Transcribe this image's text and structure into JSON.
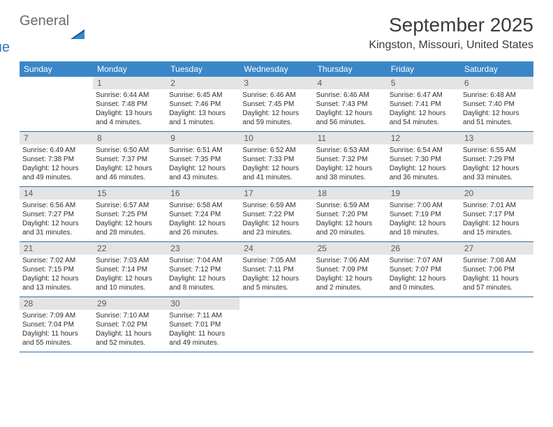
{
  "brand": {
    "part1": "General",
    "part2": "Blue"
  },
  "colors": {
    "header_bg": "#3a87c8",
    "header_text": "#ffffff",
    "daynum_bg": "#e4e4e4",
    "daynum_text": "#5a5a5a",
    "body_text": "#2e2e2e",
    "rule": "#2f6ea3",
    "logo_gray": "#6b6b6b",
    "logo_blue": "#2f77b8"
  },
  "title": "September 2025",
  "location": "Kingston, Missouri, United States",
  "daysOfWeek": [
    "Sunday",
    "Monday",
    "Tuesday",
    "Wednesday",
    "Thursday",
    "Friday",
    "Saturday"
  ],
  "weeks": [
    [
      null,
      {
        "num": "1",
        "sunrise": "Sunrise: 6:44 AM",
        "sunset": "Sunset: 7:48 PM",
        "daylight": "Daylight: 13 hours and 4 minutes."
      },
      {
        "num": "2",
        "sunrise": "Sunrise: 6:45 AM",
        "sunset": "Sunset: 7:46 PM",
        "daylight": "Daylight: 13 hours and 1 minutes."
      },
      {
        "num": "3",
        "sunrise": "Sunrise: 6:46 AM",
        "sunset": "Sunset: 7:45 PM",
        "daylight": "Daylight: 12 hours and 59 minutes."
      },
      {
        "num": "4",
        "sunrise": "Sunrise: 6:46 AM",
        "sunset": "Sunset: 7:43 PM",
        "daylight": "Daylight: 12 hours and 56 minutes."
      },
      {
        "num": "5",
        "sunrise": "Sunrise: 6:47 AM",
        "sunset": "Sunset: 7:41 PM",
        "daylight": "Daylight: 12 hours and 54 minutes."
      },
      {
        "num": "6",
        "sunrise": "Sunrise: 6:48 AM",
        "sunset": "Sunset: 7:40 PM",
        "daylight": "Daylight: 12 hours and 51 minutes."
      }
    ],
    [
      {
        "num": "7",
        "sunrise": "Sunrise: 6:49 AM",
        "sunset": "Sunset: 7:38 PM",
        "daylight": "Daylight: 12 hours and 49 minutes."
      },
      {
        "num": "8",
        "sunrise": "Sunrise: 6:50 AM",
        "sunset": "Sunset: 7:37 PM",
        "daylight": "Daylight: 12 hours and 46 minutes."
      },
      {
        "num": "9",
        "sunrise": "Sunrise: 6:51 AM",
        "sunset": "Sunset: 7:35 PM",
        "daylight": "Daylight: 12 hours and 43 minutes."
      },
      {
        "num": "10",
        "sunrise": "Sunrise: 6:52 AM",
        "sunset": "Sunset: 7:33 PM",
        "daylight": "Daylight: 12 hours and 41 minutes."
      },
      {
        "num": "11",
        "sunrise": "Sunrise: 6:53 AM",
        "sunset": "Sunset: 7:32 PM",
        "daylight": "Daylight: 12 hours and 38 minutes."
      },
      {
        "num": "12",
        "sunrise": "Sunrise: 6:54 AM",
        "sunset": "Sunset: 7:30 PM",
        "daylight": "Daylight: 12 hours and 36 minutes."
      },
      {
        "num": "13",
        "sunrise": "Sunrise: 6:55 AM",
        "sunset": "Sunset: 7:29 PM",
        "daylight": "Daylight: 12 hours and 33 minutes."
      }
    ],
    [
      {
        "num": "14",
        "sunrise": "Sunrise: 6:56 AM",
        "sunset": "Sunset: 7:27 PM",
        "daylight": "Daylight: 12 hours and 31 minutes."
      },
      {
        "num": "15",
        "sunrise": "Sunrise: 6:57 AM",
        "sunset": "Sunset: 7:25 PM",
        "daylight": "Daylight: 12 hours and 28 minutes."
      },
      {
        "num": "16",
        "sunrise": "Sunrise: 6:58 AM",
        "sunset": "Sunset: 7:24 PM",
        "daylight": "Daylight: 12 hours and 26 minutes."
      },
      {
        "num": "17",
        "sunrise": "Sunrise: 6:59 AM",
        "sunset": "Sunset: 7:22 PM",
        "daylight": "Daylight: 12 hours and 23 minutes."
      },
      {
        "num": "18",
        "sunrise": "Sunrise: 6:59 AM",
        "sunset": "Sunset: 7:20 PM",
        "daylight": "Daylight: 12 hours and 20 minutes."
      },
      {
        "num": "19",
        "sunrise": "Sunrise: 7:00 AM",
        "sunset": "Sunset: 7:19 PM",
        "daylight": "Daylight: 12 hours and 18 minutes."
      },
      {
        "num": "20",
        "sunrise": "Sunrise: 7:01 AM",
        "sunset": "Sunset: 7:17 PM",
        "daylight": "Daylight: 12 hours and 15 minutes."
      }
    ],
    [
      {
        "num": "21",
        "sunrise": "Sunrise: 7:02 AM",
        "sunset": "Sunset: 7:15 PM",
        "daylight": "Daylight: 12 hours and 13 minutes."
      },
      {
        "num": "22",
        "sunrise": "Sunrise: 7:03 AM",
        "sunset": "Sunset: 7:14 PM",
        "daylight": "Daylight: 12 hours and 10 minutes."
      },
      {
        "num": "23",
        "sunrise": "Sunrise: 7:04 AM",
        "sunset": "Sunset: 7:12 PM",
        "daylight": "Daylight: 12 hours and 8 minutes."
      },
      {
        "num": "24",
        "sunrise": "Sunrise: 7:05 AM",
        "sunset": "Sunset: 7:11 PM",
        "daylight": "Daylight: 12 hours and 5 minutes."
      },
      {
        "num": "25",
        "sunrise": "Sunrise: 7:06 AM",
        "sunset": "Sunset: 7:09 PM",
        "daylight": "Daylight: 12 hours and 2 minutes."
      },
      {
        "num": "26",
        "sunrise": "Sunrise: 7:07 AM",
        "sunset": "Sunset: 7:07 PM",
        "daylight": "Daylight: 12 hours and 0 minutes."
      },
      {
        "num": "27",
        "sunrise": "Sunrise: 7:08 AM",
        "sunset": "Sunset: 7:06 PM",
        "daylight": "Daylight: 11 hours and 57 minutes."
      }
    ],
    [
      {
        "num": "28",
        "sunrise": "Sunrise: 7:09 AM",
        "sunset": "Sunset: 7:04 PM",
        "daylight": "Daylight: 11 hours and 55 minutes."
      },
      {
        "num": "29",
        "sunrise": "Sunrise: 7:10 AM",
        "sunset": "Sunset: 7:02 PM",
        "daylight": "Daylight: 11 hours and 52 minutes."
      },
      {
        "num": "30",
        "sunrise": "Sunrise: 7:11 AM",
        "sunset": "Sunset: 7:01 PM",
        "daylight": "Daylight: 11 hours and 49 minutes."
      },
      null,
      null,
      null,
      null
    ]
  ]
}
